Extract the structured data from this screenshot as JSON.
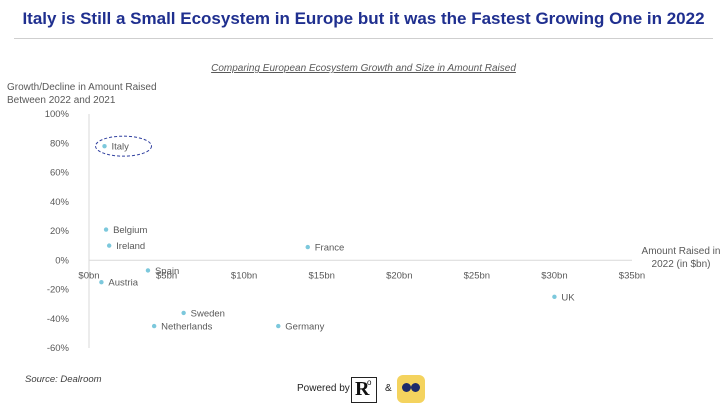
{
  "title": "Italy is Still a Small Ecosystem in Europe but it was the Fastest Growing One in 2022",
  "subtitle": "Comparing European Ecosystem Growth and Size in Amount Raised",
  "source": "Source: Dealroom",
  "footer": {
    "powered_by": "Powered by",
    "ampersand": "&",
    "logo_left_icon": "r-logo-icon",
    "logo_right_icon": "binoculars-logo-icon"
  },
  "colors": {
    "title": "#1f2f8f",
    "point": "#7cc8dc",
    "highlight_ellipse": "#2f3f9f",
    "text": "#595959"
  },
  "chart_data": {
    "type": "scatter",
    "title": "Comparing European Ecosystem Growth and Size in Amount Raised",
    "xlabel": "Amount Raised in 2022 (in $bn)",
    "ylabel": "Growth/Decline in Amount Raised Between 2022 and 2021",
    "xlim": [
      0,
      35
    ],
    "ylim": [
      -60,
      100
    ],
    "x_ticks": [
      "$0bn",
      "$5bn",
      "$10bn",
      "$15bn",
      "$20bn",
      "$25bn",
      "$30bn",
      "$35bn"
    ],
    "y_ticks": [
      "100%",
      "80%",
      "60%",
      "40%",
      "20%",
      "0%",
      "-20%",
      "-40%",
      "-60%"
    ],
    "grid": false,
    "highlight": "Italy",
    "points": [
      {
        "label": "Italy",
        "x": 1.0,
        "y": 78
      },
      {
        "label": "Belgium",
        "x": 1.1,
        "y": 21
      },
      {
        "label": "Ireland",
        "x": 1.3,
        "y": 10
      },
      {
        "label": "France",
        "x": 14.1,
        "y": 9
      },
      {
        "label": "Spain",
        "x": 3.8,
        "y": -7
      },
      {
        "label": "Austria",
        "x": 0.8,
        "y": -15
      },
      {
        "label": "Sweden",
        "x": 6.1,
        "y": -36
      },
      {
        "label": "Netherlands",
        "x": 4.2,
        "y": -45
      },
      {
        "label": "Germany",
        "x": 12.2,
        "y": -45
      },
      {
        "label": "UK",
        "x": 30.0,
        "y": -25
      }
    ]
  }
}
